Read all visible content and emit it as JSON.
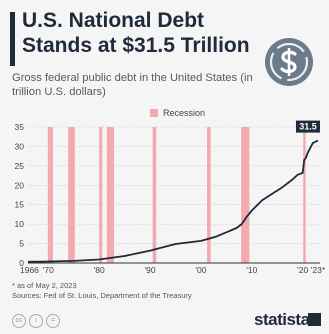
{
  "header": {
    "title": "U.S. National Debt Stands at $31.5 Trillion",
    "subtitle": "Gross federal public debt in the United States (in trillion U.S. dollars)"
  },
  "colors": {
    "line": "#1f2a3a",
    "recession": "#f3a9ae",
    "badge": "#1f2a3a"
  },
  "chart_data": {
    "type": "line",
    "title": "U.S. National Debt Stands at $31.5 Trillion",
    "subtitle": "Gross federal public debt in the United States (in trillion U.S. dollars)",
    "legend": [
      "Recession"
    ],
    "legend_position": "top-center",
    "grid": true,
    "xlim": [
      1966,
      2023.4
    ],
    "ylim": [
      0,
      35
    ],
    "yticks": [
      0,
      5,
      10,
      15,
      20,
      25,
      30,
      35
    ],
    "xtick_labels": [
      {
        "x": 1966,
        "label": "1966"
      },
      {
        "x": 1970,
        "label": "'70"
      },
      {
        "x": 1980,
        "label": "'80"
      },
      {
        "x": 1990,
        "label": "'90"
      },
      {
        "x": 2000,
        "label": "'00"
      },
      {
        "x": 2010,
        "label": "'10"
      },
      {
        "x": 2020,
        "label": "'20"
      },
      {
        "x": 2023,
        "label": "'23*"
      }
    ],
    "recessions": [
      [
        1969.9,
        1970.9
      ],
      [
        1973.9,
        1975.2
      ],
      [
        1980.0,
        1980.6
      ],
      [
        1981.5,
        1982.9
      ],
      [
        1990.5,
        1991.2
      ],
      [
        2001.2,
        2001.9
      ],
      [
        2007.9,
        2009.5
      ],
      [
        2020.1,
        2020.4
      ]
    ],
    "series": [
      {
        "name": "Gross federal public debt",
        "x": [
          1966,
          1970,
          1975,
          1980,
          1985,
          1990,
          1995,
          2000,
          2003,
          2005,
          2007,
          2008,
          2009,
          2010,
          2012,
          2014,
          2016,
          2018,
          2019,
          2020,
          2020.3,
          2020.6,
          2021,
          2022,
          2023
        ],
        "values": [
          0.32,
          0.38,
          0.54,
          0.91,
          1.8,
          3.2,
          4.9,
          5.7,
          6.8,
          7.9,
          9.0,
          10.0,
          11.9,
          13.5,
          16.1,
          17.8,
          19.5,
          21.5,
          22.7,
          23.2,
          26.5,
          27.0,
          28.4,
          30.9,
          31.5
        ]
      }
    ],
    "annotations": [
      {
        "x": 2023,
        "y": 31.5,
        "label": "31.5"
      }
    ]
  },
  "footnote": {
    "note": "* as of May 2, 2023",
    "sources": "Sources: Fed of St. Louis, Department of the Treasury"
  },
  "brand": {
    "name": "statista"
  }
}
